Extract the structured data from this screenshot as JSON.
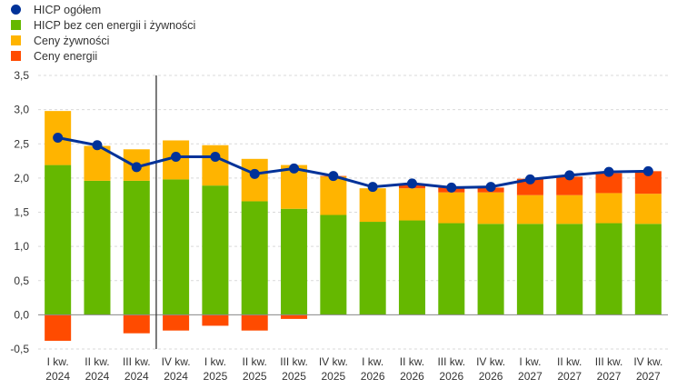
{
  "chart_data": {
    "type": "bar",
    "stacked": true,
    "categories": [
      [
        "I kw.",
        "2024"
      ],
      [
        "II kw.",
        "2024"
      ],
      [
        "III kw.",
        "2024"
      ],
      [
        "IV kw.",
        "2024"
      ],
      [
        "I kw.",
        "2025"
      ],
      [
        "II kw.",
        "2025"
      ],
      [
        "III kw.",
        "2025"
      ],
      [
        "IV kw.",
        "2025"
      ],
      [
        "I kw.",
        "2026"
      ],
      [
        "II kw.",
        "2026"
      ],
      [
        "III kw.",
        "2026"
      ],
      [
        "IV kw.",
        "2026"
      ],
      [
        "I kw.",
        "2027"
      ],
      [
        "II kw.",
        "2027"
      ],
      [
        "III kw.",
        "2027"
      ],
      [
        "IV kw.",
        "2027"
      ]
    ],
    "series": [
      {
        "name": "HICP bez cen energii i żywności",
        "kind": "bar",
        "color": "#65b800",
        "values": [
          2.19,
          1.96,
          1.96,
          1.98,
          1.89,
          1.66,
          1.55,
          1.46,
          1.36,
          1.38,
          1.34,
          1.33,
          1.33,
          1.33,
          1.34,
          1.33
        ]
      },
      {
        "name": "Ceny żywności",
        "kind": "bar",
        "color": "#ffb400",
        "values": [
          0.79,
          0.51,
          0.46,
          0.57,
          0.59,
          0.62,
          0.64,
          0.56,
          0.49,
          0.47,
          0.45,
          0.46,
          0.42,
          0.42,
          0.44,
          0.44
        ]
      },
      {
        "name": "Ceny energii",
        "kind": "bar",
        "color": "#ff4b00",
        "values": [
          -0.38,
          0.0,
          -0.27,
          -0.23,
          -0.16,
          -0.23,
          -0.06,
          0.01,
          0.0,
          0.06,
          0.07,
          0.07,
          0.24,
          0.27,
          0.29,
          0.33
        ]
      },
      {
        "name": "HICP ogółem",
        "kind": "line",
        "color": "#003299",
        "values": [
          2.59,
          2.48,
          2.16,
          2.31,
          2.31,
          2.06,
          2.14,
          2.03,
          1.87,
          1.92,
          1.86,
          1.87,
          1.98,
          2.04,
          2.09,
          2.1
        ]
      }
    ],
    "legend": [
      {
        "label": "HICP ogółem",
        "color": "#003299",
        "shape": "dot"
      },
      {
        "label": "HICP bez cen energii i żywności",
        "color": "#65b800",
        "shape": "square"
      },
      {
        "label": "Ceny żywności",
        "color": "#ffb400",
        "shape": "square"
      },
      {
        "label": "Ceny energii",
        "color": "#ff4b00",
        "shape": "square"
      }
    ],
    "legend_position": "top-left",
    "ylim": [
      -0.5,
      3.5
    ],
    "yticks": [
      "3,5",
      "3,0",
      "2,5",
      "2,0",
      "1,5",
      "1,0",
      "0,5",
      "0,0",
      "-0,5"
    ],
    "ytick_values": [
      3.5,
      3.0,
      2.5,
      2.0,
      1.5,
      1.0,
      0.5,
      0.0,
      -0.5
    ],
    "grid": true,
    "vertical_marker_after_category": 2
  }
}
